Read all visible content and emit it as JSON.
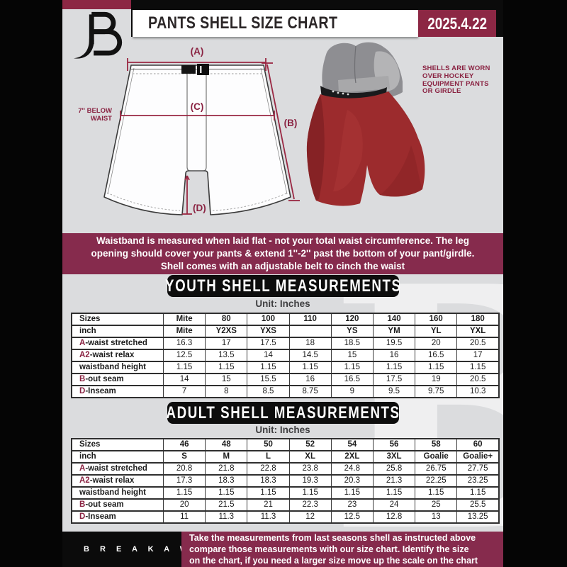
{
  "header": {
    "title": "PANTS SHELL SIZE CHART",
    "date": "2025.4.22"
  },
  "watermark": {
    "letter": "B"
  },
  "diagram": {
    "label_a": "(A)",
    "label_b": "(B)",
    "label_c": "(C)",
    "label_d": "(D)",
    "below_waist_line1": "7'' BELOW",
    "below_waist_line2": "WAIST"
  },
  "photo_note": {
    "lines": [
      "SHELLS ARE WORN",
      "OVER HOCKEY",
      "EQUIPMENT PANTS",
      "OR GIRDLE"
    ]
  },
  "notice": {
    "lines": [
      "Waistband is measured when laid flat - not your total waist circumference. The leg",
      "opening should cover your pants & extend 1''-2'' past the bottom of your pant/girdle.",
      "Shell comes with an adjustable belt to cinch the waist"
    ]
  },
  "youth": {
    "banner": "YOUTH SHELL MEASUREMENTS",
    "unit": "Unit: Inches",
    "table_rows": [
      {
        "label": "Sizes",
        "bold": true,
        "values": [
          "Mite",
          "80",
          "100",
          "110",
          "120",
          "140",
          "160",
          "180"
        ]
      },
      {
        "label": "inch",
        "bold": true,
        "values": [
          "Mite",
          "Y2XS",
          "YXS",
          "",
          "YS",
          "YM",
          "YL",
          "YXL"
        ]
      },
      {
        "prefix": "A",
        "label": "-waist stretched",
        "values": [
          "16.3",
          "17",
          "17.5",
          "18",
          "18.5",
          "19.5",
          "20",
          "20.5"
        ]
      },
      {
        "prefix": "A2",
        "label": "-waist relax",
        "values": [
          "12.5",
          "13.5",
          "14",
          "14.5",
          "15",
          "16",
          "16.5",
          "17"
        ]
      },
      {
        "label": "waistband height",
        "values": [
          "1.15",
          "1.15",
          "1.15",
          "1.15",
          "1.15",
          "1.15",
          "1.15",
          "1.15"
        ]
      },
      {
        "prefix": "B",
        "label": "-out seam",
        "values": [
          "14",
          "15",
          "15.5",
          "16",
          "16.5",
          "17.5",
          "19",
          "20.5"
        ]
      },
      {
        "prefix": "D",
        "label": "-Inseam",
        "values": [
          "7",
          "8",
          "8.5",
          "8.75",
          "9",
          "9.5",
          "9.75",
          "10.3"
        ]
      }
    ]
  },
  "adult": {
    "banner": "ADULT SHELL MEASUREMENTS",
    "unit": "Unit: Inches",
    "table_rows": [
      {
        "label": "Sizes",
        "bold": true,
        "values": [
          "46",
          "48",
          "50",
          "52",
          "54",
          "56",
          "58",
          "60"
        ]
      },
      {
        "label": "inch",
        "bold": true,
        "values": [
          "S",
          "M",
          "L",
          "XL",
          "2XL",
          "3XL",
          "Goalie",
          "Goalie+"
        ]
      },
      {
        "prefix": "A",
        "label": "-waist stretched",
        "values": [
          "20.8",
          "21.8",
          "22.8",
          "23.8",
          "24.8",
          "25.8",
          "26.75",
          "27.75"
        ]
      },
      {
        "prefix": "A2",
        "label": "-waist relax",
        "values": [
          "17.3",
          "18.3",
          "18.3",
          "19.3",
          "20.3",
          "21.3",
          "22.25",
          "23.25"
        ]
      },
      {
        "label": "waistband height",
        "values": [
          "1.15",
          "1.15",
          "1.15",
          "1.15",
          "1.15",
          "1.15",
          "1.15",
          "1.15"
        ]
      },
      {
        "prefix": "B",
        "label": "-out seam",
        "values": [
          "20",
          "21.5",
          "21",
          "22.3",
          "23",
          "24",
          "25",
          "25.5"
        ]
      },
      {
        "prefix": "D",
        "label": "-Inseam",
        "values": [
          "11",
          "11.3",
          "11.3",
          "12",
          "12.5",
          "12.8",
          "13",
          "13.25"
        ]
      }
    ]
  },
  "footer": {
    "brand": "B R E A K A W A Y",
    "lines": [
      "Take the measurements from last seasons shell as instructed above",
      "compare those measurements  with our size chart. Identify the size",
      "on the chart, if you need a larger size move up the scale on the chart"
    ]
  },
  "colors": {
    "maroon": "#862b4d",
    "maroon_dark": "#8c2744",
    "accent_text": "#8a2342",
    "page_gray": "#dbdcde",
    "black": "#0b0b0b"
  }
}
